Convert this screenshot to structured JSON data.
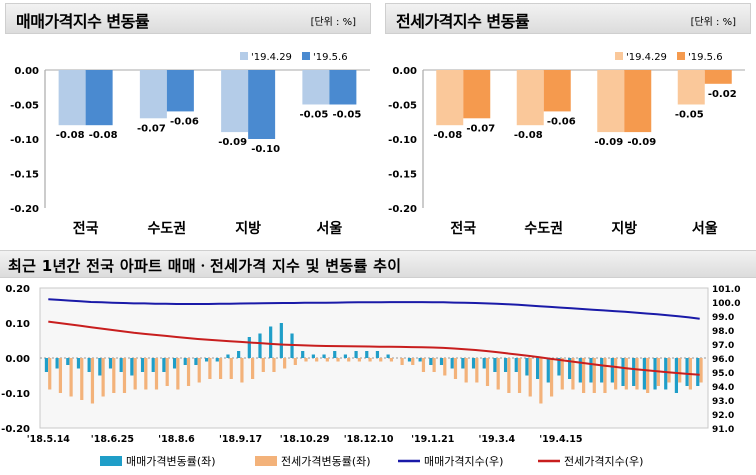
{
  "panels": {
    "left": {
      "title": "매매가격지수 변동률",
      "unit": "[단위 : %]"
    },
    "right": {
      "title": "전세가격지수 변동률",
      "unit": "[단위 : %]"
    },
    "bottom": {
      "title": "최근 1년간 전국 아파트 매매ㆍ전세가격 지수 및 변동률 추이"
    }
  },
  "colors": {
    "sale_prev": "#b4cce8",
    "sale_curr": "#4a8ad0",
    "jeonse_prev": "#fac89a",
    "jeonse_curr": "#f59a4e",
    "trend_sale_bar": "#1f9ec8",
    "trend_jeonse_bar": "#f3b27a",
    "trend_sale_line": "#1a1aa8",
    "trend_jeonse_line": "#c81e1e"
  },
  "chart_data": [
    {
      "type": "bar",
      "categories": [
        "전국",
        "수도권",
        "지방",
        "서울"
      ],
      "series": [
        {
          "name": "'19.4.29",
          "values": [
            -0.08,
            -0.07,
            -0.09,
            -0.05
          ]
        },
        {
          "name": "'19.5.6",
          "values": [
            -0.08,
            -0.06,
            -0.1,
            -0.05
          ]
        }
      ],
      "data_labels": [
        [
          "-0.08",
          "-0.08"
        ],
        [
          "-0.07",
          "-0.06"
        ],
        [
          "-0.09",
          "-0.10"
        ],
        [
          "-0.05",
          "-0.05"
        ]
      ],
      "yticks": [
        "0.00",
        "-0.05",
        "-0.10",
        "-0.15",
        "-0.20"
      ],
      "ylim": [
        -0.2,
        0.0
      ],
      "legend": "top-right"
    },
    {
      "type": "bar",
      "categories": [
        "전국",
        "수도권",
        "지방",
        "서울"
      ],
      "series": [
        {
          "name": "'19.4.29",
          "values": [
            -0.08,
            -0.08,
            -0.09,
            -0.05
          ]
        },
        {
          "name": "'19.5.6",
          "values": [
            -0.07,
            -0.06,
            -0.09,
            -0.02
          ]
        }
      ],
      "data_labels": [
        [
          "-0.08",
          "-0.07"
        ],
        [
          "-0.08",
          "-0.06"
        ],
        [
          "-0.09",
          "-0.09"
        ],
        [
          "-0.05",
          "-0.02"
        ]
      ],
      "yticks": [
        "0.00",
        "-0.05",
        "-0.10",
        "-0.15",
        "-0.20"
      ],
      "ylim": [
        -0.2,
        0.0
      ],
      "legend": "top-right"
    },
    {
      "type": "bar",
      "x_ticks": [
        "'18.5.14",
        "'18.6.25",
        "'18.8.6",
        "'18.9.17",
        "'18.10.29",
        "'18.12.10",
        "'19.1.21",
        "'19.3.4",
        "'19.4.15"
      ],
      "left_yticks": [
        "0.20",
        "0.10",
        "0.00",
        "-0.10",
        "-0.20"
      ],
      "left_ylim": [
        -0.2,
        0.2
      ],
      "right_yticks": [
        "101.0",
        "100.0",
        "99.0",
        "98.0",
        "97.0",
        "96.0",
        "95.0",
        "94.0",
        "93.0",
        "92.0",
        "91.0"
      ],
      "right_ylim": [
        91.0,
        101.0
      ],
      "series": [
        {
          "name": "매매가격변동률(좌)",
          "kind": "bar",
          "axis": "left",
          "values": [
            -0.04,
            -0.03,
            -0.02,
            -0.03,
            -0.04,
            -0.05,
            -0.03,
            -0.04,
            -0.05,
            -0.04,
            -0.04,
            -0.04,
            -0.03,
            -0.02,
            -0.02,
            -0.01,
            -0.01,
            0.01,
            0.02,
            0.06,
            0.07,
            0.09,
            0.1,
            0.07,
            0.02,
            0.01,
            0.01,
            0.02,
            0.01,
            0.02,
            0.02,
            0.02,
            0.01,
            0.0,
            -0.01,
            -0.01,
            -0.02,
            -0.02,
            -0.03,
            -0.03,
            -0.03,
            -0.03,
            -0.04,
            -0.04,
            -0.04,
            -0.05,
            -0.06,
            -0.07,
            -0.05,
            -0.06,
            -0.07,
            -0.07,
            -0.07,
            -0.07,
            -0.08,
            -0.08,
            -0.09,
            -0.09,
            -0.09,
            -0.1,
            -0.08,
            -0.08
          ]
        },
        {
          "name": "전세가격변동률(좌)",
          "kind": "bar",
          "axis": "left",
          "values": [
            -0.09,
            -0.1,
            -0.11,
            -0.12,
            -0.13,
            -0.11,
            -0.1,
            -0.1,
            -0.09,
            -0.09,
            -0.09,
            -0.08,
            -0.09,
            -0.08,
            -0.07,
            -0.06,
            -0.06,
            -0.06,
            -0.07,
            -0.06,
            -0.04,
            -0.04,
            -0.03,
            -0.02,
            -0.01,
            -0.01,
            -0.01,
            -0.01,
            -0.01,
            -0.01,
            -0.01,
            -0.01,
            -0.01,
            -0.02,
            -0.02,
            -0.04,
            -0.04,
            -0.05,
            -0.06,
            -0.07,
            -0.07,
            -0.08,
            -0.09,
            -0.1,
            -0.1,
            -0.11,
            -0.13,
            -0.11,
            -0.09,
            -0.09,
            -0.1,
            -0.1,
            -0.1,
            -0.09,
            -0.09,
            -0.09,
            -0.1,
            -0.08,
            -0.07,
            -0.07,
            -0.09,
            -0.07
          ]
        },
        {
          "name": "매매가격지수(우)",
          "kind": "line",
          "axis": "right",
          "values": [
            100.2,
            100.15,
            100.1,
            100.05,
            100.0,
            99.98,
            99.95,
            99.93,
            99.9,
            99.9,
            99.88,
            99.87,
            99.86,
            99.86,
            99.86,
            99.86,
            99.87,
            99.88,
            99.89,
            99.9,
            99.91,
            99.92,
            99.93,
            99.93,
            99.94,
            99.95,
            99.95,
            99.96,
            99.97,
            99.98,
            99.98,
            99.98,
            99.99,
            99.99,
            99.99,
            99.99,
            99.98,
            99.98,
            99.96,
            99.95,
            99.93,
            99.9,
            99.87,
            99.84,
            99.8,
            99.75,
            99.7,
            99.65,
            99.6,
            99.55,
            99.5,
            99.45,
            99.4,
            99.35,
            99.3,
            99.24,
            99.18,
            99.12,
            99.05,
            98.98,
            98.9,
            98.8
          ]
        },
        {
          "name": "전세가격지수(우)",
          "kind": "line",
          "axis": "right",
          "values": [
            98.6,
            98.5,
            98.4,
            98.3,
            98.2,
            98.1,
            98.0,
            97.9,
            97.8,
            97.72,
            97.65,
            97.58,
            97.5,
            97.43,
            97.36,
            97.3,
            97.25,
            97.2,
            97.15,
            97.1,
            97.05,
            97.0,
            96.96,
            96.93,
            96.9,
            96.88,
            96.86,
            96.85,
            96.84,
            96.83,
            96.82,
            96.81,
            96.8,
            96.79,
            96.78,
            96.77,
            96.75,
            96.72,
            96.68,
            96.63,
            96.57,
            96.5,
            96.42,
            96.33,
            96.24,
            96.15,
            96.05,
            95.95,
            95.85,
            95.75,
            95.65,
            95.55,
            95.46,
            95.37,
            95.28,
            95.2,
            95.12,
            95.05,
            94.98,
            94.92,
            94.86,
            94.8
          ]
        }
      ],
      "legend": "bottom"
    }
  ]
}
